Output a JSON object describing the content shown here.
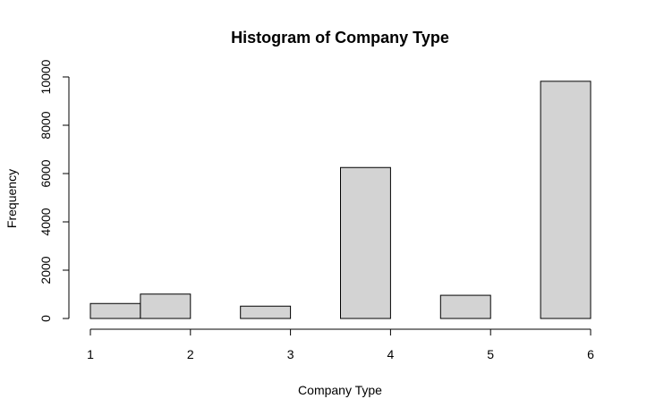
{
  "chart_data": {
    "type": "bar",
    "title": "Histogram of Company Type",
    "xlabel": "Company Type",
    "ylabel": "Frequency",
    "bins": [
      {
        "from": 1.0,
        "to": 1.5,
        "value": 620
      },
      {
        "from": 1.5,
        "to": 2.0,
        "value": 1010
      },
      {
        "from": 2.0,
        "to": 2.5,
        "value": 0
      },
      {
        "from": 2.5,
        "to": 3.0,
        "value": 510
      },
      {
        "from": 3.0,
        "to": 3.5,
        "value": 0
      },
      {
        "from": 3.5,
        "to": 4.0,
        "value": 6250
      },
      {
        "from": 4.0,
        "to": 4.5,
        "value": 0
      },
      {
        "from": 4.5,
        "to": 5.0,
        "value": 960
      },
      {
        "from": 5.0,
        "to": 5.5,
        "value": 0
      },
      {
        "from": 5.5,
        "to": 6.0,
        "value": 9820
      }
    ],
    "xticks": [
      1,
      2,
      3,
      4,
      5,
      6
    ],
    "xtick_labels": [
      "1",
      "2",
      "3",
      "4",
      "5",
      "6"
    ],
    "yticks": [
      0,
      2000,
      4000,
      6000,
      8000,
      10000
    ],
    "ytick_labels": [
      "0",
      "2000",
      "4000",
      "6000",
      "8000",
      "10000"
    ],
    "xlim": [
      1,
      6
    ],
    "ylim": [
      0,
      10000
    ],
    "bar_color": "#d3d3d3",
    "edge_color": "#000000",
    "grid": false,
    "legend": "none"
  }
}
